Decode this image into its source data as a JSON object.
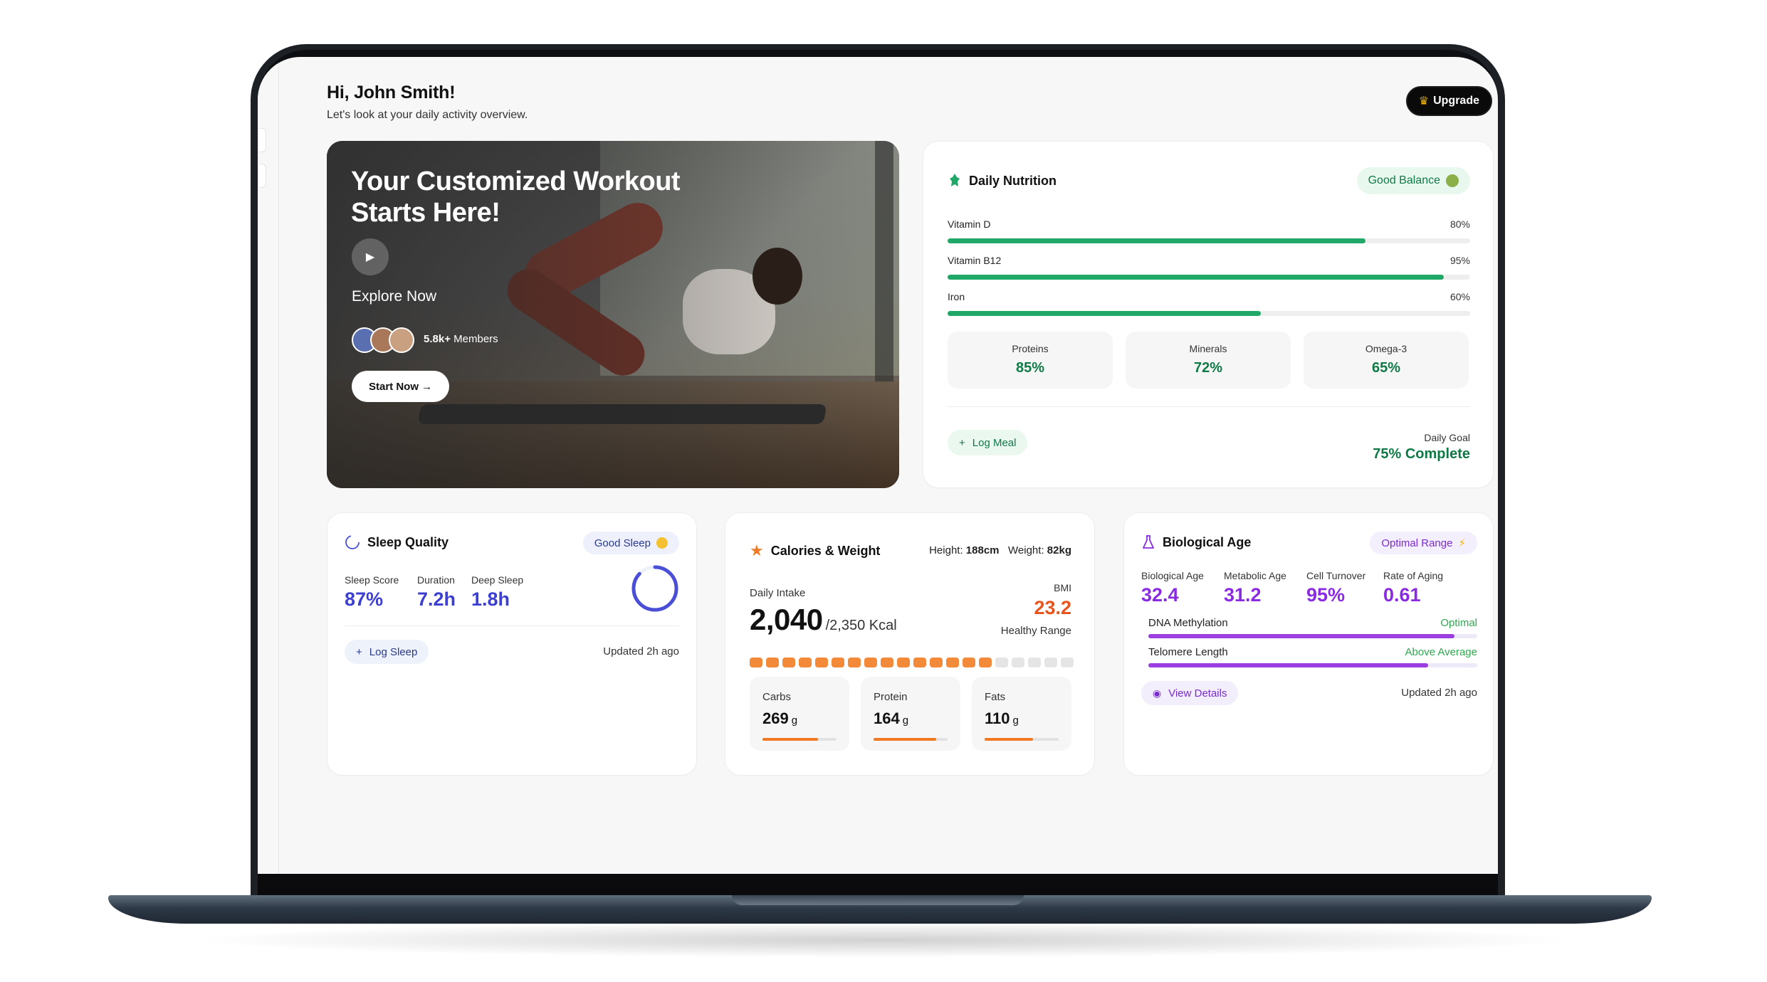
{
  "header": {
    "greeting": "Hi, John Smith!",
    "subtitle": "Let's look at your daily activity overview.",
    "upgrade_label": "Upgrade"
  },
  "hero": {
    "title": "Your Customized Workout Starts Here!",
    "explore_label": "Explore Now",
    "members_count": "5.8k+",
    "members_label": "Members",
    "start_label": "Start Now →"
  },
  "nutrition": {
    "title": "Daily Nutrition",
    "badge": "Good Balance",
    "nutrients": [
      {
        "name": "Vitamin D",
        "percent": "80%",
        "value": 0.8
      },
      {
        "name": "Vitamin B12",
        "percent": "95%",
        "value": 0.95
      },
      {
        "name": "Iron",
        "percent": "60%",
        "value": 0.6
      }
    ],
    "macros": [
      {
        "name": "Proteins",
        "value": "85%"
      },
      {
        "name": "Minerals",
        "value": "72%"
      },
      {
        "name": "Omega-3",
        "value": "65%"
      }
    ],
    "log_label": "Log Meal",
    "goal_label": "Daily Goal",
    "goal_value": "75% Complete",
    "accent": "#1fa867"
  },
  "sleep": {
    "title": "Sleep Quality",
    "badge": "Good Sleep",
    "stats": [
      {
        "label": "Sleep Score",
        "value": "87%"
      },
      {
        "label": "Duration",
        "value": "7.2h"
      },
      {
        "label": "Deep Sleep",
        "value": "1.8h"
      }
    ],
    "ring_progress": 0.87,
    "log_label": "Log Sleep",
    "updated": "Updated 2h ago"
  },
  "calories": {
    "title": "Calories & Weight",
    "height_label": "Height:",
    "height_value": "188cm",
    "weight_label": "Weight:",
    "weight_value": "82kg",
    "intake_label": "Daily Intake",
    "intake_value": "2,040",
    "intake_target": "/2,350 Kcal",
    "bmi_label": "BMI",
    "bmi_value": "23.2",
    "bmi_range": "Healthy Range",
    "segments_total": 20,
    "segments_filled": 15,
    "macros": [
      {
        "name": "Carbs",
        "value": "269",
        "unit": "g",
        "fill": 0.75
      },
      {
        "name": "Protein",
        "value": "164",
        "unit": "g",
        "fill": 0.85
      },
      {
        "name": "Fats",
        "value": "110",
        "unit": "g",
        "fill": 0.65
      }
    ],
    "accent": "#f07a24"
  },
  "bio": {
    "title": "Biological Age",
    "badge": "Optimal Range",
    "stats": [
      {
        "label": "Biological Age",
        "value": "32.4"
      },
      {
        "label": "Metabolic Age",
        "value": "31.2"
      },
      {
        "label": "Cell Turnover",
        "value": "95%"
      },
      {
        "label": "Rate of Aging",
        "value": "0.61"
      }
    ],
    "bars": [
      {
        "label": "DNA Methylation",
        "status": "Optimal",
        "fill": 0.93
      },
      {
        "label": "Telomere Length",
        "status": "Above Average",
        "fill": 0.85
      }
    ],
    "details_label": "View Details",
    "updated": "Updated 2h ago",
    "accent": "#9b3fe0"
  }
}
